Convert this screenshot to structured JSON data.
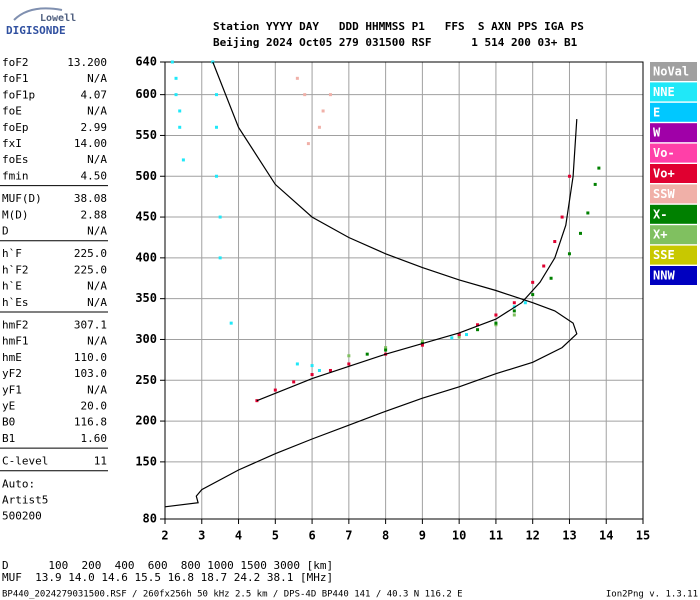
{
  "logo": {
    "top": "Lowell",
    "bottom": "DIGISONDE"
  },
  "header": {
    "line1": "Station YYYY DAY   DDD HHMMSS P1   FFS  S AXN PPS IGA PS",
    "line2": "Beijing 2024 Oct05 279 031500 RSF      1 514 200 03+ B1"
  },
  "panel": {
    "groups": [
      [
        [
          "foF2",
          "13.200"
        ],
        [
          "foF1",
          "N/A"
        ],
        [
          "foF1p",
          "4.07"
        ],
        [
          "foE",
          "N/A"
        ],
        [
          "foEp",
          "2.99"
        ],
        [
          "fxI",
          "14.00"
        ],
        [
          "foEs",
          "N/A"
        ],
        [
          "fmin",
          "4.50"
        ]
      ],
      [
        [
          "MUF(D)",
          "38.08"
        ],
        [
          "M(D)",
          "2.88"
        ],
        [
          "D",
          "N/A"
        ]
      ],
      [
        [
          "h`F",
          "225.0"
        ],
        [
          "h`F2",
          "225.0"
        ],
        [
          "h`E",
          "N/A"
        ],
        [
          "h`Es",
          "N/A"
        ]
      ],
      [
        [
          "hmF2",
          "307.1"
        ],
        [
          "hmF1",
          "N/A"
        ],
        [
          "hmE",
          "110.0"
        ],
        [
          "yF2",
          "103.0"
        ],
        [
          "yF1",
          "N/A"
        ],
        [
          "yE",
          "20.0"
        ],
        [
          "B0",
          "116.8"
        ],
        [
          "B1",
          "1.60"
        ]
      ],
      [
        [
          "C-level",
          "11"
        ]
      ],
      [
        [
          "Auto:"
        ],
        [
          "Artist5"
        ],
        [
          "500200"
        ]
      ]
    ]
  },
  "bottom": {
    "distance": "D      100  200  400  600  800 1000 1500 3000 [km]",
    "muf": "MUF  13.9 14.0 14.6 15.5 16.8 18.7 24.2 38.1 [MHz]",
    "footer": "BP440_2024279031500.RSF / 260fx256h 50 kHz 2.5 km / DPS-4D BP440 141 / 40.3 N 116.2 E",
    "version": "Ion2Png v. 1.3.11"
  },
  "chart_data": {
    "type": "scatter",
    "xlim": [
      2,
      15
    ],
    "xticks": [
      2,
      3,
      4,
      5,
      6,
      7,
      8,
      9,
      10,
      11,
      12,
      13,
      14,
      15
    ],
    "ylim": [
      80,
      640
    ],
    "yticks": [
      80,
      150,
      200,
      250,
      300,
      350,
      400,
      450,
      500,
      550,
      600,
      640
    ],
    "grid": true,
    "legend": [
      {
        "name": "NoVal",
        "color": "#a0a0a0"
      },
      {
        "name": "NNE",
        "color": "#20e8f8"
      },
      {
        "name": "E",
        "color": "#00c8ff"
      },
      {
        "name": "W",
        "color": "#a000a8"
      },
      {
        "name": "Vo-",
        "color": "#ff40a8"
      },
      {
        "name": "Vo+",
        "color": "#e00030"
      },
      {
        "name": "SSW",
        "color": "#f0b0a8"
      },
      {
        "name": "X-",
        "color": "#008000"
      },
      {
        "name": "X+",
        "color": "#80c060"
      },
      {
        "name": "SSE",
        "color": "#c8c800"
      },
      {
        "name": "NNW",
        "color": "#0000c0"
      }
    ],
    "series": [
      {
        "mode": "points",
        "color": "#20e8f8",
        "x": [
          2.2,
          2.3,
          2.3,
          2.4,
          2.4,
          2.5,
          3.3,
          3.4,
          3.4,
          3.4,
          3.5,
          3.5,
          5.6,
          6.0,
          6.2,
          9.8,
          10.2,
          11.5,
          11.8,
          3.8
        ],
        "y": [
          640,
          620,
          600,
          580,
          560,
          520,
          640,
          600,
          560,
          500,
          450,
          400,
          270,
          268,
          262,
          302,
          306,
          340,
          345,
          320
        ]
      },
      {
        "mode": "points",
        "color": "#f0b0a8",
        "x": [
          5.6,
          5.8,
          6.2,
          6.3,
          6.5,
          5.9
        ],
        "y": [
          620,
          600,
          560,
          580,
          600,
          540
        ]
      },
      {
        "mode": "points",
        "color": "#80c060",
        "x": [
          7.0,
          8.0,
          9.0,
          10.0,
          11.0,
          11.5
        ],
        "y": [
          280,
          290,
          298,
          303,
          318,
          330
        ]
      },
      {
        "mode": "points",
        "color": "#008000",
        "x": [
          7.5,
          8.0,
          9.0,
          10.0,
          10.5,
          11.0,
          11.5,
          12.0,
          12.5,
          13.0,
          13.3,
          13.5,
          13.7,
          13.8
        ],
        "y": [
          282,
          287,
          295,
          306,
          312,
          320,
          335,
          355,
          375,
          405,
          430,
          455,
          490,
          510
        ]
      },
      {
        "mode": "points",
        "color": "#e00030",
        "x": [
          4.5,
          5.0,
          5.5,
          6.0,
          6.5,
          7.0,
          8.0,
          9.0,
          10.0,
          10.5,
          11.0,
          11.5,
          12.0,
          12.3,
          12.6,
          12.8,
          13.0
        ],
        "y": [
          225,
          238,
          248,
          257,
          262,
          270,
          282,
          293,
          306,
          318,
          330,
          345,
          370,
          390,
          420,
          450,
          500
        ]
      },
      {
        "mode": "line",
        "color": "#000000",
        "x": [
          2.0,
          2.9,
          2.85,
          3.0,
          4.0,
          5.0,
          6.0,
          7.0,
          8.0,
          9.0,
          10.0,
          11.0,
          12.0,
          12.8,
          13.2,
          13.1,
          12.6,
          12.0,
          11.0,
          10.0,
          9.0,
          8.0,
          7.0,
          6.0,
          5.0,
          4.0,
          3.3
        ],
        "y": [
          95,
          100,
          108,
          116,
          140,
          160,
          178,
          195,
          212,
          228,
          242,
          258,
          272,
          290,
          307,
          320,
          335,
          345,
          360,
          373,
          388,
          405,
          425,
          450,
          490,
          560,
          640
        ]
      },
      {
        "mode": "line",
        "color": "#000000",
        "x": [
          4.5,
          6.0,
          8.0,
          10.0,
          11.0,
          11.7,
          12.2,
          12.6,
          12.9,
          13.1,
          13.2
        ],
        "y": [
          225,
          252,
          282,
          308,
          325,
          345,
          370,
          400,
          440,
          500,
          570
        ]
      }
    ]
  }
}
